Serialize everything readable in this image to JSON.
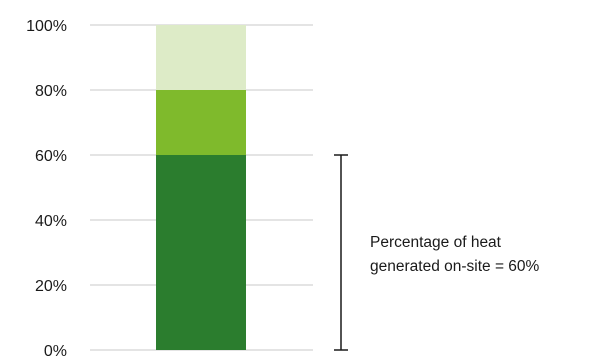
{
  "chart_data": {
    "type": "bar",
    "stacked": true,
    "categories": [
      ""
    ],
    "series": [
      {
        "values": [
          60
        ],
        "color": "#2b7d2e"
      },
      {
        "values": [
          20
        ],
        "color": "#7fba2c"
      },
      {
        "values": [
          20
        ],
        "color": "#ddebc7"
      }
    ],
    "title": "",
    "xlabel": "",
    "ylabel": "",
    "ylim": [
      0,
      100
    ],
    "yticks": [
      "0%",
      "20%",
      "40%",
      "60%",
      "80%",
      "100%"
    ],
    "grid": true,
    "gridline_color": "#c8c8c8",
    "annotation": {
      "lines": [
        "Percentage of heat",
        "generated on-site = 60%"
      ],
      "bracket_from": 0,
      "bracket_to": 60
    }
  }
}
